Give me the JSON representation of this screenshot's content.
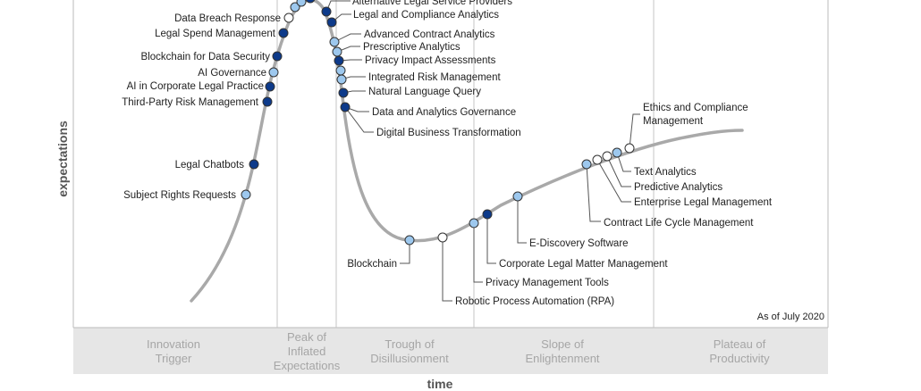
{
  "y_axis_label": "expectations",
  "x_axis_label": "time",
  "as_of": "As of July 2020",
  "phases": [
    {
      "lines": [
        "Innovation",
        "Trigger"
      ]
    },
    {
      "lines": [
        "Peak of",
        "Inflated",
        "Expectations"
      ]
    },
    {
      "lines": [
        "Trough of",
        "Disillusionment"
      ]
    },
    {
      "lines": [
        "Slope of",
        "Enlightenment"
      ]
    },
    {
      "lines": [
        "Plateau of",
        "Productivity"
      ]
    }
  ],
  "legend_colors": {
    "less_than_2_years": "#ffffff",
    "2_to_5_years": "#9dc8ee",
    "5_to_10_years": "#0d3a8a",
    "curve": "#a9a9a9",
    "phase_band": "#e6e6e6"
  },
  "technologies": [
    {
      "name": "Subject Rights Requests",
      "category": "2_to_5_years"
    },
    {
      "name": "Legal Chatbots",
      "category": "5_to_10_years"
    },
    {
      "name": "Third-Party Risk Management",
      "category": "5_to_10_years"
    },
    {
      "name": "AI in Corporate Legal Practice",
      "category": "5_to_10_years"
    },
    {
      "name": "AI Governance",
      "category": "2_to_5_years"
    },
    {
      "name": "Blockchain for Data Security",
      "category": "5_to_10_years"
    },
    {
      "name": "Legal Spend Management",
      "category": "5_to_10_years"
    },
    {
      "name": "Data Breach Response",
      "category": "less_than_2_years"
    },
    {
      "name": "Alternative Legal Service Providers",
      "category": "5_to_10_years"
    },
    {
      "name": "Legal and Compliance Analytics",
      "category": "5_to_10_years"
    },
    {
      "name": "Advanced Contract Analytics",
      "category": "2_to_5_years"
    },
    {
      "name": "Prescriptive Analytics",
      "category": "2_to_5_years"
    },
    {
      "name": "Privacy Impact Assessments",
      "category": "5_to_10_years"
    },
    {
      "name": "Integrated Risk Management",
      "category": "2_to_5_years"
    },
    {
      "name": "Natural Language Query",
      "category": "5_to_10_years"
    },
    {
      "name": "Data and Analytics Governance",
      "category": "5_to_10_years"
    },
    {
      "name": "Digital Business Transformation",
      "category": "5_to_10_years"
    },
    {
      "name": "Blockchain",
      "category": "2_to_5_years"
    },
    {
      "name": "Robotic Process Automation (RPA)",
      "category": "less_than_2_years"
    },
    {
      "name": "Privacy Management Tools",
      "category": "2_to_5_years"
    },
    {
      "name": "Corporate Legal Matter Management",
      "category": "5_to_10_years"
    },
    {
      "name": "E-Discovery Software",
      "category": "2_to_5_years"
    },
    {
      "name": "Contract Life Cycle Management",
      "category": "2_to_5_years"
    },
    {
      "name": "Enterprise Legal Management",
      "category": "less_than_2_years"
    },
    {
      "name": "Predictive Analytics",
      "category": "less_than_2_years"
    },
    {
      "name": "Text Analytics",
      "category": "2_to_5_years"
    },
    {
      "name": "Ethics and Compliance",
      "category": "less_than_2_years"
    },
    {
      "name": "Management",
      "category": null
    }
  ]
}
